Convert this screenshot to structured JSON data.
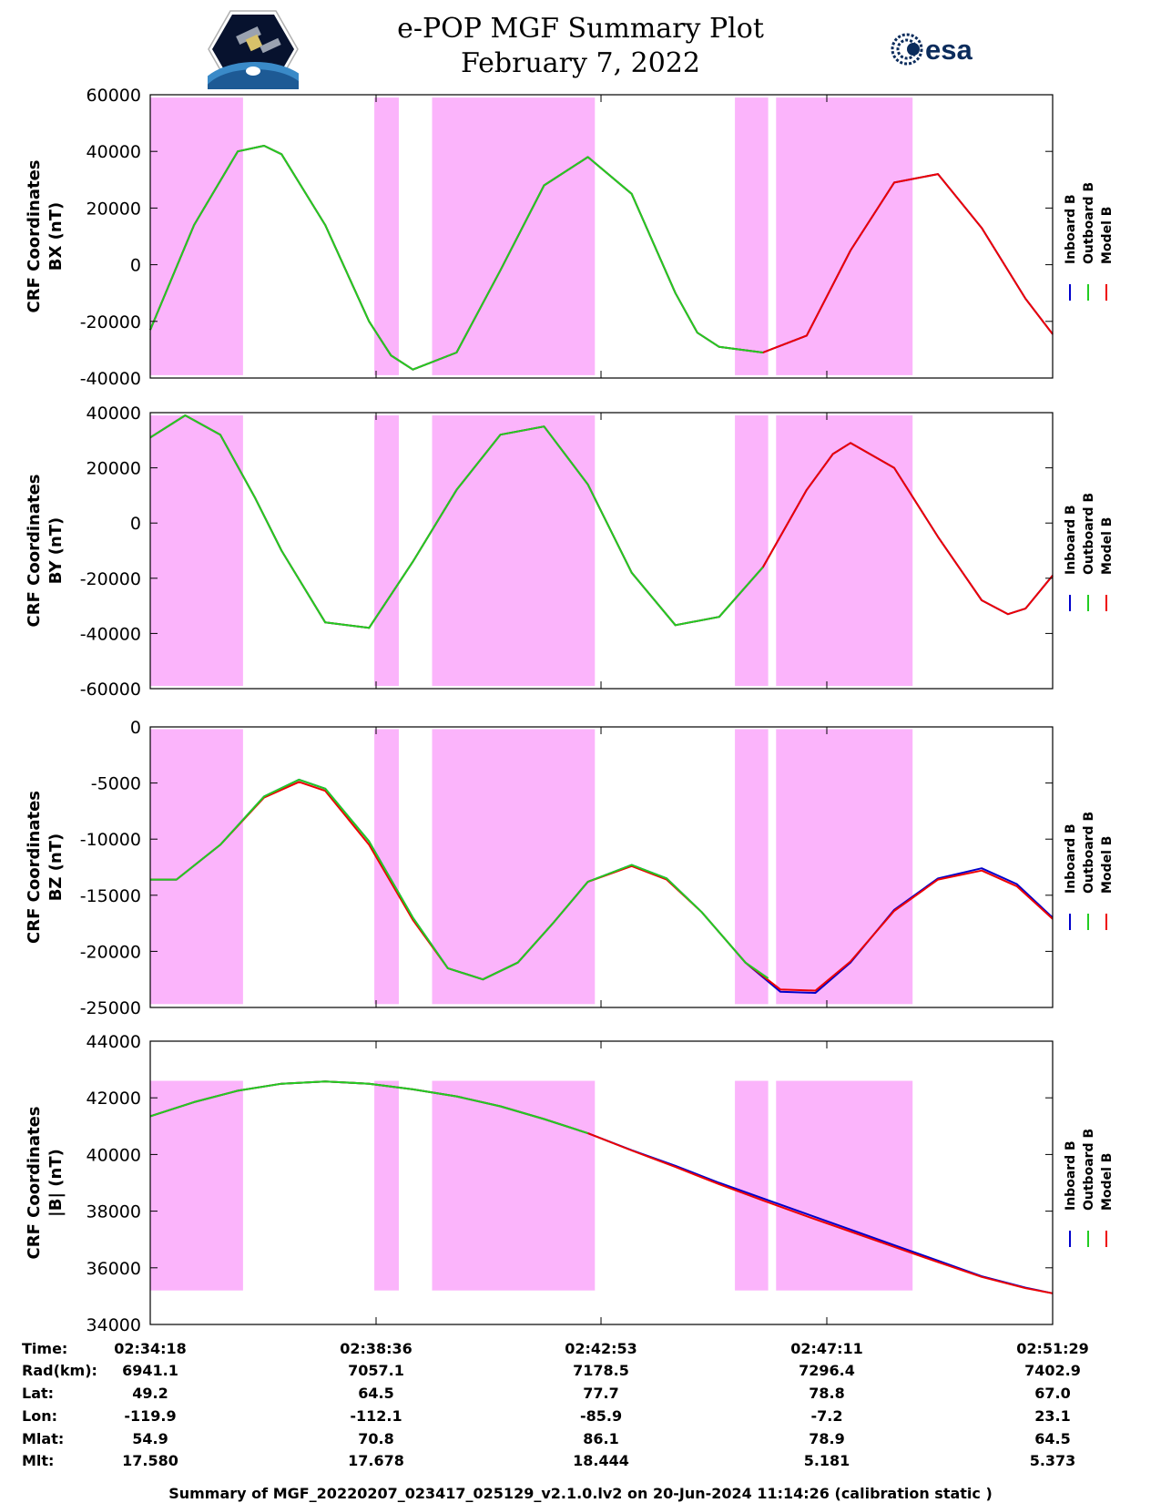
{
  "header": {
    "title": "e-POP MGF Summary Plot",
    "date": "February 7, 2022",
    "left_logo": "cassiope-mission-logo",
    "right_logo": "esa",
    "right_logo_text": "esa"
  },
  "colors": {
    "inboard": "#0000cc",
    "outboard": "#22cc22",
    "model": "#ee0000",
    "shade": "#fbb4fb"
  },
  "legend": [
    "Inboard B",
    "Outboard B",
    "Model B"
  ],
  "chart_data": {
    "type": "line",
    "x_unit": "seconds from 02:34:18",
    "x_range": [
      0,
      1031
    ],
    "x_ticks": [
      {
        "t": 0,
        "label": "02:34:18"
      },
      {
        "t": 258,
        "label": "02:38:36"
      },
      {
        "t": 515,
        "label": "02:42:53"
      },
      {
        "t": 773,
        "label": "02:47:11"
      },
      {
        "t": 1031,
        "label": "02:51:29"
      }
    ],
    "shaded_intervals": [
      [
        0,
        106
      ],
      [
        256,
        284
      ],
      [
        322,
        508
      ],
      [
        668,
        706
      ],
      [
        715,
        871
      ]
    ],
    "green_visible_until": 706,
    "panels": [
      {
        "ylabel": [
          "CRF Coordinates",
          "BX (nT)"
        ],
        "ylim": [
          -40000,
          60000
        ],
        "yticks": [
          -40000,
          -20000,
          0,
          20000,
          40000,
          60000
        ],
        "shade_range": [
          -39000,
          59000
        ],
        "series": [
          {
            "name": "Inboard B",
            "x": [
              0,
              50,
              100,
              130,
              150,
              200,
              250,
              275,
              300,
              350,
              400,
              450,
              500,
              550,
              600,
              625,
              650,
              700,
              750,
              800,
              850,
              900,
              950,
              1000,
              1031
            ],
            "y": [
              -23000,
              14000,
              40000,
              42000,
              39000,
              14000,
              -20000,
              -32000,
              -37000,
              -31000,
              -2000,
              28000,
              38000,
              25000,
              -10000,
              -24000,
              -29000,
              -31000,
              -25000,
              5000,
              29000,
              32000,
              13000,
              -12000,
              -24500
            ]
          },
          {
            "name": "Outboard B",
            "x": [
              0,
              50,
              100,
              130,
              150,
              200,
              250,
              275,
              300,
              350,
              400,
              450,
              500,
              550,
              600,
              625,
              650,
              700
            ],
            "y": [
              -23000,
              14000,
              40000,
              42000,
              39000,
              14000,
              -20000,
              -32000,
              -37000,
              -31000,
              -2000,
              28000,
              38000,
              25000,
              -10000,
              -24000,
              -29000,
              -31000
            ]
          },
          {
            "name": "Model B",
            "x": [
              0,
              50,
              100,
              130,
              150,
              200,
              250,
              275,
              300,
              350,
              400,
              450,
              500,
              550,
              600,
              625,
              650,
              700,
              750,
              800,
              850,
              900,
              950,
              1000,
              1031
            ],
            "y": [
              -23000,
              14000,
              40000,
              42000,
              39000,
              14000,
              -20000,
              -32000,
              -37000,
              -31000,
              -2000,
              28000,
              38000,
              25000,
              -10000,
              -24000,
              -29000,
              -31000,
              -25000,
              5000,
              29000,
              32000,
              13000,
              -12000,
              -24500
            ]
          }
        ]
      },
      {
        "ylabel": [
          "CRF Coordinates",
          "BY (nT)"
        ],
        "ylim": [
          -60000,
          40000
        ],
        "yticks": [
          -60000,
          -40000,
          -20000,
          0,
          20000,
          40000
        ],
        "shade_range": [
          -59000,
          39000
        ],
        "series": [
          {
            "name": "Inboard B",
            "x": [
              0,
              40,
              80,
              120,
              150,
              200,
              250,
              300,
              350,
              400,
              450,
              500,
              550,
              600,
              650,
              700,
              750,
              780,
              800,
              850,
              900,
              950,
              980,
              1000,
              1031
            ],
            "y": [
              31000,
              39000,
              32000,
              9000,
              -10000,
              -36000,
              -38000,
              -14000,
              12000,
              32000,
              35000,
              14000,
              -18000,
              -37000,
              -34000,
              -16000,
              12000,
              25000,
              29000,
              20000,
              -5000,
              -28000,
              -33000,
              -31000,
              -19000
            ]
          },
          {
            "name": "Outboard B",
            "x": [
              0,
              40,
              80,
              120,
              150,
              200,
              250,
              300,
              350,
              400,
              450,
              500,
              550,
              600,
              650,
              700
            ],
            "y": [
              31000,
              39000,
              32000,
              9000,
              -10000,
              -36000,
              -38000,
              -14000,
              12000,
              32000,
              35000,
              14000,
              -18000,
              -37000,
              -34000,
              -16000
            ]
          },
          {
            "name": "Model B",
            "x": [
              0,
              40,
              80,
              120,
              150,
              200,
              250,
              300,
              350,
              400,
              450,
              500,
              550,
              600,
              650,
              700,
              750,
              780,
              800,
              850,
              900,
              950,
              980,
              1000,
              1031
            ],
            "y": [
              31000,
              39000,
              32000,
              9000,
              -10000,
              -36000,
              -38000,
              -14000,
              12000,
              32000,
              35000,
              14000,
              -18000,
              -37000,
              -34000,
              -16000,
              12000,
              25000,
              29000,
              20000,
              -5000,
              -28000,
              -33000,
              -31000,
              -19000
            ]
          }
        ]
      },
      {
        "ylabel": [
          "CRF Coordinates",
          "BZ (nT)"
        ],
        "ylim": [
          -25000,
          0
        ],
        "yticks": [
          -25000,
          -20000,
          -15000,
          -10000,
          -5000,
          0
        ],
        "shade_range": [
          -24700,
          -200
        ],
        "series": [
          {
            "name": "Inboard B",
            "x": [
              0,
              30,
              80,
              130,
              170,
              200,
              250,
              300,
              340,
              380,
              420,
              460,
              500,
              550,
              590,
              630,
              680,
              720,
              760,
              800,
              850,
              900,
              950,
              990,
              1031
            ],
            "y": [
              -13600,
              -13600,
              -10500,
              -6200,
              -4700,
              -5500,
              -10200,
              -17000,
              -21500,
              -22500,
              -21000,
              -17500,
              -13800,
              -12300,
              -13500,
              -16500,
              -21000,
              -23600,
              -23700,
              -21000,
              -16300,
              -13500,
              -12600,
              -14000,
              -17000
            ]
          },
          {
            "name": "Outboard B",
            "x": [
              0,
              30,
              80,
              130,
              170,
              200,
              250,
              300,
              340,
              380,
              420,
              460,
              500,
              550,
              590,
              630,
              680,
              706
            ],
            "y": [
              -13600,
              -13600,
              -10500,
              -6200,
              -4700,
              -5500,
              -10200,
              -17000,
              -21500,
              -22500,
              -21000,
              -17500,
              -13800,
              -12300,
              -13500,
              -16500,
              -21000,
              -22400
            ]
          },
          {
            "name": "Model B",
            "x": [
              0,
              30,
              80,
              130,
              170,
              200,
              250,
              300,
              340,
              380,
              420,
              460,
              500,
              550,
              590,
              630,
              680,
              720,
              760,
              800,
              850,
              900,
              950,
              990,
              1031
            ],
            "y": [
              -13600,
              -13600,
              -10500,
              -6300,
              -4900,
              -5700,
              -10500,
              -17200,
              -21500,
              -22500,
              -21000,
              -17500,
              -13800,
              -12400,
              -13600,
              -16500,
              -21000,
              -23400,
              -23500,
              -20900,
              -16400,
              -13600,
              -12800,
              -14200,
              -17100
            ]
          }
        ]
      },
      {
        "ylabel": [
          "CRF Coordinates",
          "|B| (nT)"
        ],
        "ylim": [
          34000,
          44000
        ],
        "yticks": [
          34000,
          36000,
          38000,
          40000,
          42000,
          44000
        ],
        "shade_range": [
          35200,
          42600
        ],
        "series": [
          {
            "name": "Inboard B",
            "x": [
              0,
              50,
              100,
              150,
              200,
              250,
              300,
              350,
              400,
              450,
              500,
              550,
              600,
              650,
              700,
              750,
              800,
              850,
              900,
              950,
              1000,
              1031
            ],
            "y": [
              41350,
              41850,
              42250,
              42500,
              42580,
              42500,
              42300,
              42050,
              41700,
              41250,
              40750,
              40150,
              39600,
              39000,
              38450,
              37900,
              37350,
              36800,
              36250,
              35700,
              35300,
              35100
            ]
          },
          {
            "name": "Outboard B",
            "x": [
              0,
              50,
              100,
              150,
              200,
              250,
              300,
              350,
              400,
              450,
              500
            ],
            "y": [
              41350,
              41850,
              42250,
              42500,
              42580,
              42500,
              42300,
              42050,
              41700,
              41250,
              40750
            ]
          },
          {
            "name": "Model B",
            "x": [
              0,
              50,
              100,
              150,
              200,
              250,
              300,
              350,
              400,
              450,
              500,
              550,
              600,
              650,
              700,
              750,
              800,
              850,
              900,
              950,
              1000,
              1031
            ],
            "y": [
              41350,
              41850,
              42250,
              42500,
              42580,
              42500,
              42300,
              42050,
              41700,
              41250,
              40750,
              40140,
              39560,
              38950,
              38380,
              37820,
              37280,
              36740,
              36200,
              35680,
              35280,
              35100
            ]
          }
        ]
      }
    ]
  },
  "info_rows": [
    {
      "label": "Time:",
      "values": [
        "02:34:18",
        "02:38:36",
        "02:42:53",
        "02:47:11",
        "02:51:29"
      ]
    },
    {
      "label": "Rad(km):",
      "values": [
        "6941.1",
        "7057.1",
        "7178.5",
        "7296.4",
        "7402.9"
      ]
    },
    {
      "label": "Lat:",
      "values": [
        "49.2",
        "64.5",
        "77.7",
        "78.8",
        "67.0"
      ]
    },
    {
      "label": "Lon:",
      "values": [
        "-119.9",
        "-112.1",
        "-85.9",
        "-7.2",
        "23.1"
      ]
    },
    {
      "label": "Mlat:",
      "values": [
        "54.9",
        "70.8",
        "86.1",
        "78.9",
        "64.5"
      ]
    },
    {
      "label": "Mlt:",
      "values": [
        "17.580",
        "17.678",
        "18.444",
        "5.181",
        "5.373"
      ]
    }
  ],
  "footer": "Summary of MGF_20220207_023417_025129_v2.1.0.lv2 on 20-Jun-2024 11:14:26 (calibration static )"
}
